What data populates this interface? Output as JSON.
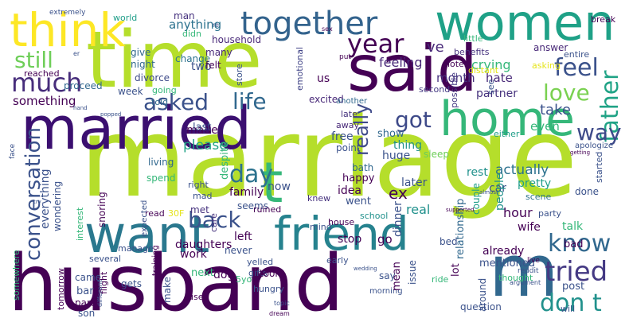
{
  "word_cloud": {
    "words": [
      {
        "text": "marriage",
        "color": "#b5de2b"
      },
      {
        "text": "husband",
        "color": "#440154"
      },
      {
        "text": "time",
        "color": "#b5de2b"
      },
      {
        "text": "married",
        "color": "#3b0f70"
      },
      {
        "text": "said",
        "color": "#440154"
      },
      {
        "text": "women",
        "color": "#1fa187"
      },
      {
        "text": "home",
        "color": "#35b779"
      },
      {
        "text": "think",
        "color": "#fde725"
      },
      {
        "text": "want",
        "color": "#2a788e"
      },
      {
        "text": "friend",
        "color": "#26828e"
      },
      {
        "text": "m",
        "color": "#31688e"
      },
      {
        "text": "t",
        "color": "#35b779"
      },
      {
        "text": "together",
        "color": "#33638d"
      },
      {
        "text": "much",
        "color": "#472d7b"
      },
      {
        "text": "year",
        "color": "#440154"
      },
      {
        "text": "still",
        "color": "#6ece58"
      },
      {
        "text": "feel",
        "color": "#3b528b"
      },
      {
        "text": "father",
        "color": "#20a386"
      },
      {
        "text": "love",
        "color": "#7ad151"
      },
      {
        "text": "asked",
        "color": "#3b528b"
      },
      {
        "text": "life",
        "color": "#31688e"
      },
      {
        "text": "got",
        "color": "#3e4a89"
      },
      {
        "text": "day",
        "color": "#2c728e"
      },
      {
        "text": "way",
        "color": "#3e4a89"
      },
      {
        "text": "conversation",
        "color": "#3b528b"
      },
      {
        "text": "back",
        "color": "#3b528b"
      },
      {
        "text": "know",
        "color": "#31688e"
      },
      {
        "text": "tried",
        "color": "#443983"
      },
      {
        "text": "don t",
        "color": "#21918c"
      },
      {
        "text": "really",
        "color": "#3e4a89"
      },
      {
        "text": "something",
        "color": "#440154"
      },
      {
        "text": "ve",
        "color": "#482878"
      },
      {
        "text": "crying",
        "color": "#35b779"
      },
      {
        "text": "feeling",
        "color": "#482878"
      },
      {
        "text": "month",
        "color": "#46327e"
      },
      {
        "text": "hate",
        "color": "#482878"
      },
      {
        "text": "partner",
        "color": "#46327e"
      },
      {
        "text": "take",
        "color": "#3b528b"
      },
      {
        "text": "even",
        "color": "#35b779"
      },
      {
        "text": "actually",
        "color": "#2c728e"
      },
      {
        "text": "rest",
        "color": "#21918c"
      },
      {
        "text": "pretty",
        "color": "#1f9e89"
      },
      {
        "text": "made",
        "color": "#440154"
      },
      {
        "text": "please",
        "color": "#20a386"
      },
      {
        "text": "last",
        "color": "#3b528b"
      },
      {
        "text": "anything",
        "color": "#2c728e"
      },
      {
        "text": "man",
        "color": "#46327e"
      },
      {
        "text": "didn",
        "color": "#35b779"
      },
      {
        "text": "change",
        "color": "#2c728e"
      },
      {
        "text": "household",
        "color": "#482878"
      },
      {
        "text": "little",
        "color": "#35b779"
      },
      {
        "text": "benefits",
        "color": "#46327e"
      },
      {
        "text": "hotel",
        "color": "#440154"
      },
      {
        "text": "answer",
        "color": "#482878"
      },
      {
        "text": "entire",
        "color": "#3b528b"
      },
      {
        "text": "break",
        "color": "#440154"
      },
      {
        "text": "world",
        "color": "#1f9e89"
      },
      {
        "text": "give",
        "color": "#31688e"
      },
      {
        "text": "night",
        "color": "#31688e"
      },
      {
        "text": "divorce",
        "color": "#3e4a89"
      },
      {
        "text": "two",
        "color": "#3b528b"
      },
      {
        "text": "felt",
        "color": "#440154"
      },
      {
        "text": "many",
        "color": "#482878"
      },
      {
        "text": "proceed",
        "color": "#31688e"
      },
      {
        "text": "going",
        "color": "#35b779"
      },
      {
        "text": "reached",
        "color": "#440154"
      },
      {
        "text": "week",
        "color": "#3b528b"
      },
      {
        "text": "told",
        "color": "#31688e"
      },
      {
        "text": "us",
        "color": "#440154"
      },
      {
        "text": "excited",
        "color": "#482878"
      },
      {
        "text": "emotional",
        "color": "#414487"
      },
      {
        "text": "store",
        "color": "#3b528b"
      },
      {
        "text": "second",
        "color": "#443983"
      },
      {
        "text": "possible",
        "color": "#443983"
      },
      {
        "text": "distant",
        "color": "#e5e419"
      },
      {
        "text": "asking",
        "color": "#e5e419"
      },
      {
        "text": "see",
        "color": "#3b528b"
      },
      {
        "text": "apologize",
        "color": "#3b528b"
      },
      {
        "text": "living",
        "color": "#31688e"
      },
      {
        "text": "spend",
        "color": "#35b779"
      },
      {
        "text": "despite",
        "color": "#35b779"
      },
      {
        "text": "free",
        "color": "#3b528b"
      },
      {
        "text": "point",
        "color": "#3b528b"
      },
      {
        "text": "show",
        "color": "#31688e"
      },
      {
        "text": "another",
        "color": "#31688e"
      },
      {
        "text": "sleep",
        "color": "#6ece58"
      },
      {
        "text": "thing",
        "color": "#21918c"
      },
      {
        "text": "huge",
        "color": "#3b528b"
      },
      {
        "text": "car",
        "color": "#3b528b"
      },
      {
        "text": "either",
        "color": "#1f9e89"
      },
      {
        "text": "away",
        "color": "#482878"
      },
      {
        "text": "late",
        "color": "#46327e"
      },
      {
        "text": "now",
        "color": "#3b528b"
      },
      {
        "text": "bath",
        "color": "#31688e"
      },
      {
        "text": "idea",
        "color": "#440154"
      },
      {
        "text": "ex",
        "color": "#440154"
      },
      {
        "text": "later",
        "color": "#3b528b"
      },
      {
        "text": "real",
        "color": "#21918c"
      },
      {
        "text": "couple",
        "color": "#1f9e89"
      },
      {
        "text": "people",
        "color": "#21918c"
      },
      {
        "text": "hour",
        "color": "#440154"
      },
      {
        "text": "scene",
        "color": "#2c728e"
      },
      {
        "text": "party",
        "color": "#3b528b"
      },
      {
        "text": "done",
        "color": "#3b528b"
      },
      {
        "text": "started",
        "color": "#3b528b"
      },
      {
        "text": "family",
        "color": "#440154"
      },
      {
        "text": "seems",
        "color": "#3b528b"
      },
      {
        "text": "went",
        "color": "#3b528b"
      },
      {
        "text": "happy",
        "color": "#440154"
      },
      {
        "text": "knew",
        "color": "#46327e"
      },
      {
        "text": "school",
        "color": "#21918c"
      },
      {
        "text": "everything",
        "color": "#3b528b"
      },
      {
        "text": "wondering",
        "color": "#3b528b"
      },
      {
        "text": "interest",
        "color": "#35b779"
      },
      {
        "text": "snoring",
        "color": "#440154"
      },
      {
        "text": "read",
        "color": "#440154"
      },
      {
        "text": "met",
        "color": "#46327e"
      },
      {
        "text": "care",
        "color": "#46327e"
      },
      {
        "text": "ruined",
        "color": "#440154"
      },
      {
        "text": "mad",
        "color": "#3b528b"
      },
      {
        "text": "right",
        "color": "#3b528b"
      },
      {
        "text": "expected",
        "color": "#3b528b"
      },
      {
        "text": "30F",
        "color": "#e5e419"
      },
      {
        "text": "several",
        "color": "#3b528b"
      },
      {
        "text": "manage",
        "color": "#3b528b"
      },
      {
        "text": "daughters",
        "color": "#440154"
      },
      {
        "text": "left",
        "color": "#440154"
      },
      {
        "text": "never",
        "color": "#3b528b"
      },
      {
        "text": "work",
        "color": "#440154"
      },
      {
        "text": "mind",
        "color": "#3b528b"
      },
      {
        "text": "stop",
        "color": "#440154"
      },
      {
        "text": "go",
        "color": "#440154"
      },
      {
        "text": "dinner",
        "color": "#3b528b"
      },
      {
        "text": "relationship",
        "color": "#31688e"
      },
      {
        "text": "already",
        "color": "#440154"
      },
      {
        "text": "mentioned",
        "color": "#3b528b"
      },
      {
        "text": "wife",
        "color": "#440154"
      },
      {
        "text": "talk",
        "color": "#35b779"
      },
      {
        "text": "bad",
        "color": "#440154"
      },
      {
        "text": "house",
        "color": "#440154"
      },
      {
        "text": "yelled",
        "color": "#3b528b"
      },
      {
        "text": "early",
        "color": "#3b528b"
      },
      {
        "text": "gifts",
        "color": "#3b528b"
      },
      {
        "text": "bed",
        "color": "#3b528b"
      },
      {
        "text": "lot",
        "color": "#440154"
      },
      {
        "text": "around",
        "color": "#3b528b"
      },
      {
        "text": "post",
        "color": "#3b528b"
      },
      {
        "text": "dog",
        "color": "#440154"
      },
      {
        "text": "next",
        "color": "#35b779"
      },
      {
        "text": "make",
        "color": "#3b528b"
      },
      {
        "text": "used",
        "color": "#440154"
      },
      {
        "text": "5yo",
        "color": "#35b779"
      },
      {
        "text": "took",
        "color": "#440154"
      },
      {
        "text": "hungry",
        "color": "#3b528b"
      },
      {
        "text": "say",
        "color": "#3b528b"
      },
      {
        "text": "morning",
        "color": "#3b528b"
      },
      {
        "text": "mean",
        "color": "#440154"
      },
      {
        "text": "issue",
        "color": "#3b528b"
      },
      {
        "text": "ride",
        "color": "#35b779"
      },
      {
        "text": "question",
        "color": "#3b528b"
      },
      {
        "text": "will",
        "color": "#3b528b"
      },
      {
        "text": "thought",
        "color": "#35b779"
      },
      {
        "text": "came",
        "color": "#3b528b"
      },
      {
        "text": "bar",
        "color": "#3b528b"
      },
      {
        "text": "part",
        "color": "#440154"
      },
      {
        "text": "son",
        "color": "#3b528b"
      },
      {
        "text": "gets",
        "color": "#3b528b"
      },
      {
        "text": "flight",
        "color": "#440154"
      },
      {
        "text": "tomorrow",
        "color": "#440154"
      },
      {
        "text": "somewhere",
        "color": "#35b779"
      },
      {
        "text": "training",
        "color": "#440154"
      },
      {
        "text": "different",
        "color": "#3b528b"
      },
      {
        "text": "face",
        "color": "#3b528b"
      },
      {
        "text": "extremely",
        "color": "#3b528b"
      },
      {
        "text": "dream",
        "color": "#440154"
      },
      {
        "text": "argument",
        "color": "#3b528b"
      },
      {
        "text": "reddit",
        "color": "#3b528b"
      },
      {
        "text": "live",
        "color": "#440154"
      },
      {
        "text": "topic",
        "color": "#3b528b"
      },
      {
        "text": "supported",
        "color": "#440154"
      },
      {
        "text": "almost",
        "color": "#3b528b"
      },
      {
        "text": "wedding",
        "color": "#3b528b"
      },
      {
        "text": "getting",
        "color": "#440154"
      },
      {
        "text": "popped",
        "color": "#3b528b"
      },
      {
        "text": "hand",
        "color": "#3b528b"
      },
      {
        "text": "try",
        "color": "#3b528b"
      },
      {
        "text": "sex",
        "color": "#440154"
      },
      {
        "text": "re",
        "color": "#3b528b"
      },
      {
        "text": "er",
        "color": "#3b528b"
      },
      {
        "text": "put",
        "color": "#440154"
      }
    ]
  }
}
